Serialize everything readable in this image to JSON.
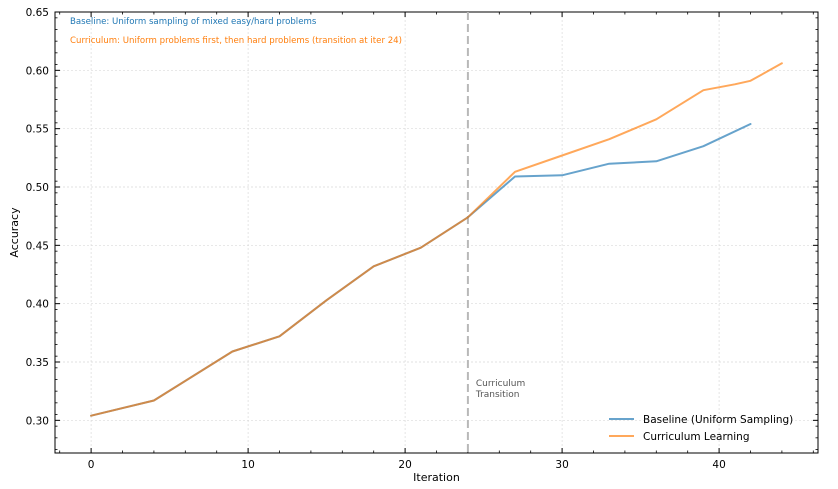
{
  "chart_data": {
    "type": "line",
    "title": "",
    "xlabel": "Iteration",
    "ylabel": "Accuracy",
    "xlim": [
      -2.3,
      46.3
    ],
    "ylim": [
      0.272,
      0.65
    ],
    "x_ticks": [
      0,
      10,
      20,
      30,
      40
    ],
    "y_ticks": [
      0.3,
      0.35,
      0.4,
      0.45,
      0.5,
      0.55,
      0.6,
      0.65
    ],
    "grid": true,
    "legend_position": "lower-right",
    "series": [
      {
        "name": "Baseline (Uniform Sampling)",
        "color": "#1f77b4",
        "x": [
          0,
          4,
          9,
          12,
          15,
          18,
          21,
          24,
          27,
          30,
          33,
          36,
          39,
          42
        ],
        "y": [
          0.304,
          0.317,
          0.359,
          0.372,
          0.403,
          0.432,
          0.448,
          0.474,
          0.509,
          0.51,
          0.52,
          0.522,
          0.535,
          0.554
        ]
      },
      {
        "name": "Curriculum Learning",
        "color": "#ff7f0e",
        "x": [
          0,
          4,
          9,
          12,
          15,
          18,
          21,
          24,
          27,
          30,
          33,
          36,
          39,
          41,
          42,
          44
        ],
        "y": [
          0.304,
          0.317,
          0.359,
          0.372,
          0.403,
          0.432,
          0.448,
          0.474,
          0.513,
          0.527,
          0.541,
          0.558,
          0.583,
          0.588,
          0.591,
          0.606
        ]
      }
    ],
    "transition": {
      "x": 24,
      "label_lines": [
        "Curriculum",
        "Transition"
      ]
    },
    "annotations": [
      {
        "text": "Baseline: Uniform sampling of mixed easy/hard problems",
        "color": "#1f77b4"
      },
      {
        "text": "Curriculum: Uniform problems first, then hard problems (transition at iter 24)",
        "color": "#ff7f0e"
      }
    ]
  }
}
